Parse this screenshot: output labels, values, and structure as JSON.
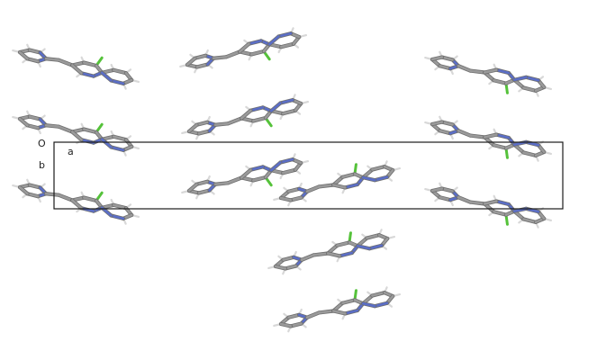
{
  "axes": {
    "origin_label": "O",
    "a_label": "a",
    "b_label": "b"
  },
  "colors": {
    "carbon": "#9a9a9a",
    "carbon_edge": "#6f6f6f",
    "nitrogen": "#5b6ec7",
    "hydrogen": "#d8d8d8",
    "chlorine": "#55c23a",
    "cell_edge": "#1a1a1a",
    "background": "#ffffff"
  }
}
